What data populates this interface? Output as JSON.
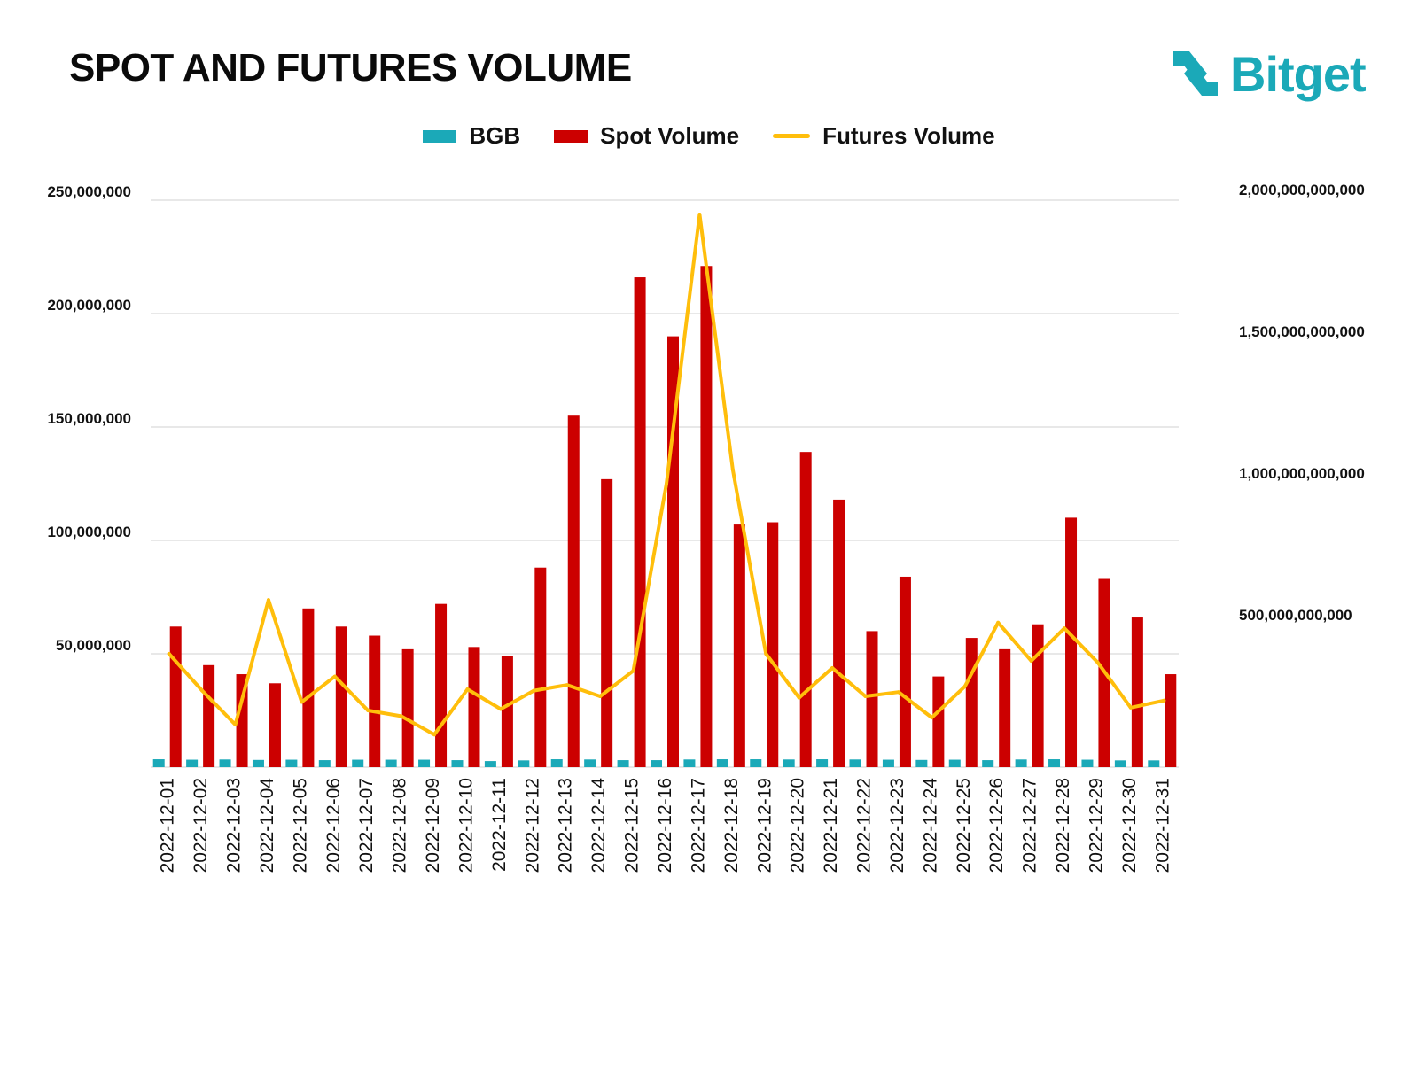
{
  "title": "SPOT AND FUTURES VOLUME",
  "brand": {
    "name": "Bitget",
    "color": "#1ba9b8",
    "icon": "bitget-arrows-icon"
  },
  "colors": {
    "bgb": "#1ba9b8",
    "spot": "#cc0000",
    "futures": "#ffbe0b",
    "grid": "#d9d9d9"
  },
  "chart_data": {
    "type": "bar",
    "title": "SPOT AND FUTURES VOLUME",
    "legend_position": "top-center",
    "grid": true,
    "categories": [
      "2022-12-01",
      "2022-12-02",
      "2022-12-03",
      "2022-12-04",
      "2022-12-05",
      "2022-12-06",
      "2022-12-07",
      "2022-12-08",
      "2022-12-09",
      "2022-12-10",
      "2022-12-11",
      "2022-12-12",
      "2022-12-13",
      "2022-12-14",
      "2022-12-15",
      "2022-12-16",
      "2022-12-17",
      "2022-12-18",
      "2022-12-19",
      "2022-12-20",
      "2022-12-21",
      "2022-12-22",
      "2022-12-23",
      "2022-12-24",
      "2022-12-25",
      "2022-12-26",
      "2022-12-27",
      "2022-12-28",
      "2022-12-29",
      "2022-12-30",
      "2022-12-31"
    ],
    "y_left": {
      "range": [
        0,
        250000000
      ],
      "ticks": [
        50000000,
        100000000,
        150000000,
        200000000,
        250000000
      ],
      "tick_labels": [
        "50,000,000",
        "100,000,000",
        "150,000,000",
        "200,000,000",
        "250,000,000"
      ]
    },
    "y_right": {
      "range": [
        0,
        2000000000000
      ],
      "ticks": [
        500000000000,
        1000000000000,
        1500000000000,
        2000000000000
      ],
      "tick_labels": [
        "500,000,000,000",
        "1,000,000,000,000",
        "1,500,000,000,000",
        "2,000,000,000,000"
      ]
    },
    "series": [
      {
        "name": "BGB",
        "type": "bar",
        "axis": "left",
        "values": [
          3500000,
          3300000,
          3400000,
          3200000,
          3300000,
          3100000,
          3300000,
          3300000,
          3300000,
          3100000,
          2700000,
          3000000,
          3500000,
          3400000,
          3100000,
          3100000,
          3400000,
          3500000,
          3500000,
          3400000,
          3500000,
          3400000,
          3300000,
          3200000,
          3300000,
          3100000,
          3400000,
          3500000,
          3300000,
          3000000,
          3000000
        ]
      },
      {
        "name": "Spot Volume",
        "type": "bar",
        "axis": "left",
        "values": [
          62000000,
          45000000,
          41000000,
          37000000,
          70000000,
          62000000,
          58000000,
          52000000,
          72000000,
          53000000,
          49000000,
          88000000,
          155000000,
          127000000,
          216000000,
          190000000,
          221000000,
          107000000,
          108000000,
          139000000,
          118000000,
          60000000,
          84000000,
          40000000,
          57000000,
          52000000,
          63000000,
          110000000,
          83000000,
          66000000,
          41000000
        ]
      },
      {
        "name": "Futures Volume",
        "type": "line",
        "axis": "right",
        "values": [
          400000000000,
          270000000000,
          150000000000,
          590000000000,
          230000000000,
          320000000000,
          200000000000,
          180000000000,
          115000000000,
          275000000000,
          205000000000,
          270000000000,
          290000000000,
          250000000000,
          340000000000,
          1000000000000,
          1950000000000,
          1050000000000,
          400000000000,
          245000000000,
          350000000000,
          250000000000,
          265000000000,
          175000000000,
          285000000000,
          510000000000,
          375000000000,
          490000000000,
          370000000000,
          210000000000,
          235000000000
        ]
      }
    ]
  }
}
